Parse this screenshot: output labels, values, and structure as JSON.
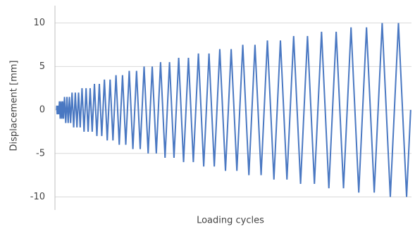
{
  "chart_data": {
    "type": "line",
    "y_label": "Displacement [mm]",
    "x_label": "Loading cycles",
    "color": "#4a78c2",
    "grid": true,
    "ylim": [
      -11.5,
      12
    ],
    "yticks": [
      -10,
      -5,
      0,
      5,
      10
    ],
    "xlim": [
      -4,
      872
    ],
    "x": [
      0,
      0.5,
      1.5,
      2.5,
      3.5,
      4.5,
      5.5,
      7,
      9,
      11,
      13,
      15,
      17,
      19.5,
      22.5,
      25.5,
      28.5,
      31.5,
      34.5,
      38,
      42,
      46,
      50,
      54,
      58,
      62.5,
      67.5,
      72.5,
      77.5,
      82.5,
      87.5,
      93,
      99,
      105,
      111,
      117.5,
      124.5,
      131.5,
      138.5,
      146,
      154,
      162,
      170,
      178.5,
      187.5,
      196.5,
      205.5,
      215,
      225,
      235,
      245,
      255.5,
      266.5,
      277.5,
      288.5,
      300,
      312,
      324,
      336,
      348.5,
      361.5,
      374.5,
      387.5,
      401,
      415,
      429,
      443,
      457.5,
      472.5,
      487.5,
      502.5,
      518,
      534,
      550,
      566,
      582.5,
      599.5,
      616.5,
      633.5,
      651,
      669,
      687,
      705,
      723.5,
      742.5,
      761.5,
      780.5,
      800,
      820,
      840,
      860,
      870
    ],
    "values": [
      0,
      0.5,
      -0.5,
      0.5,
      -0.5,
      0.5,
      -0.5,
      1,
      -1,
      1,
      -1,
      1,
      -1,
      1.5,
      -1.5,
      1.5,
      -1.5,
      1.5,
      -1.5,
      2,
      -2,
      2,
      -2,
      2,
      -2,
      2.5,
      -2.5,
      2.5,
      -2.5,
      2.5,
      -2.5,
      3,
      -3,
      3,
      -3,
      3.5,
      -3.5,
      3.5,
      -3.5,
      4,
      -4,
      4,
      -4,
      4.5,
      -4.5,
      4.5,
      -4.5,
      5,
      -5,
      5,
      -5,
      5.5,
      -5.5,
      5.5,
      -5.5,
      6,
      -6,
      6,
      -6,
      6.5,
      -6.5,
      6.5,
      -6.5,
      7,
      -7,
      7,
      -7,
      7.5,
      -7.5,
      7.5,
      -7.5,
      8,
      -8,
      8,
      -8,
      8.5,
      -8.5,
      8.5,
      -8.5,
      9,
      -9,
      9,
      -9,
      9.5,
      -9.5,
      9.5,
      -9.5,
      10,
      -10,
      10,
      -10,
      0
    ]
  }
}
